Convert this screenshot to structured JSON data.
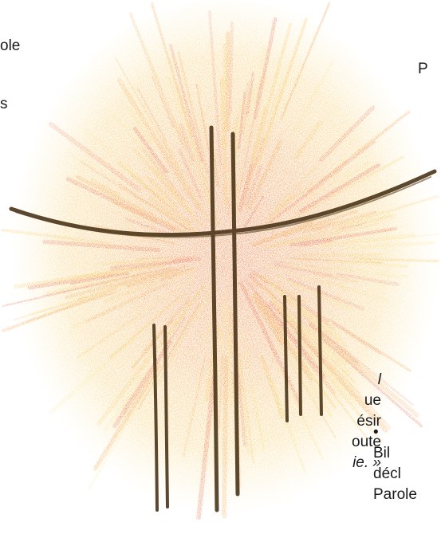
{
  "text_fragments": {
    "left_top_1": "ole",
    "left_top_2": "s",
    "right_top_1": "P",
    "left_block": [
      {
        "text": "l",
        "italic": true
      },
      {
        "text": "ue",
        "italic": false
      },
      {
        "text": "ésir",
        "italic": false
      },
      {
        "text": "oute",
        "italic": false
      },
      {
        "text": "ie. »",
        "italic": true
      }
    ],
    "right_block": [
      {
        "text": "•",
        "italic": false
      },
      {
        "text": "Bil",
        "italic": false
      },
      {
        "text": "décl",
        "italic": false
      },
      {
        "text": "Parole",
        "italic": false
      }
    ]
  },
  "illustration": {
    "subject": "colored-pencil-burst-with-cross",
    "colors": {
      "burst_inner": "#f08a1e",
      "burst_mid": "#f5b52a",
      "burst_outer": "#f7d96a",
      "accent_red": "#e2502a",
      "lines": "#4a3418"
    }
  }
}
